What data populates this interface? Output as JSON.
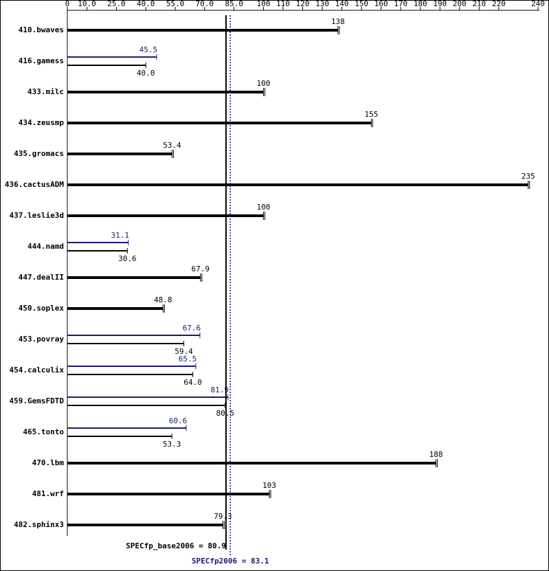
{
  "chart_data": {
    "type": "bar",
    "categories": [
      "410.bwaves",
      "416.gamess",
      "433.milc",
      "434.zeusmp",
      "435.gromacs",
      "436.cactusADM",
      "437.leslie3d",
      "444.namd",
      "447.dealII",
      "450.soplex",
      "453.povray",
      "454.calculix",
      "459.GemsFDTD",
      "465.tonto",
      "470.lbm",
      "481.wrf",
      "482.sphinx3"
    ],
    "series": [
      {
        "color": "#000000",
        "values": [
          138,
          40.0,
          100,
          155,
          53.4,
          235,
          100,
          30.6,
          67.9,
          48.8,
          59.4,
          64.0,
          80.5,
          53.3,
          188,
          103,
          79.3
        ],
        "value_labels": [
          "138",
          "40.0",
          "100",
          "155",
          "53.4",
          "235",
          "100",
          "30.6",
          "67.9",
          "48.8",
          "59.4",
          "64.0",
          "80.5",
          "53.3",
          "188",
          "103",
          "79.3"
        ]
      },
      {
        "color": "#191970",
        "values": [
          null,
          45.5,
          null,
          null,
          null,
          null,
          null,
          31.1,
          null,
          null,
          67.6,
          65.5,
          81.9,
          60.6,
          null,
          null,
          null
        ],
        "value_labels": [
          null,
          "45.5",
          null,
          null,
          null,
          null,
          null,
          "31.1",
          null,
          null,
          "67.6",
          "65.5",
          "81.9",
          "60.6",
          null,
          null,
          null
        ]
      }
    ],
    "xlim": [
      0,
      240
    ],
    "xticks": [
      0,
      {
        "value": 10,
        "label": "10.0"
      },
      {
        "value": 25,
        "label": "25.0"
      },
      {
        "value": 40,
        "label": "40.0"
      },
      {
        "value": 55,
        "label": "55.0"
      },
      {
        "value": 70,
        "label": "70.0"
      },
      {
        "value": 85,
        "label": "85.0"
      },
      100,
      110,
      120,
      130,
      140,
      150,
      160,
      170,
      180,
      190,
      200,
      210,
      220,
      240
    ],
    "reference_lines": [
      {
        "text": "SPECfp_base2006 = 80.9",
        "value": 80.9,
        "color": "#000000"
      },
      {
        "text": "SPECfp2006 = 83.1",
        "value": 83.1,
        "color": "#191970"
      }
    ]
  }
}
